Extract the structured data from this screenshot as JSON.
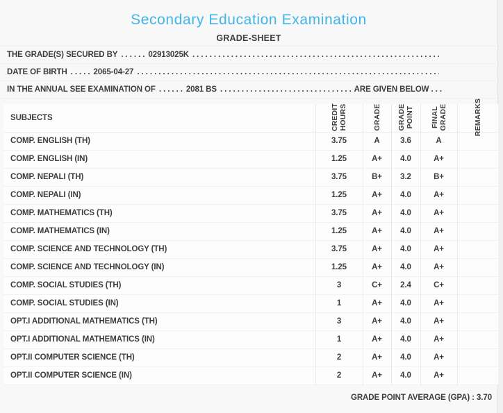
{
  "accent_color": "#41b4e9",
  "page": {
    "title": "Secondary Education Examination",
    "subtitle": "GRADE-SHEET"
  },
  "info": {
    "lines": [
      {
        "label": "THE GRADE(S) SECURED BY",
        "lead_dots": ". . . . . .",
        "value": "02913025K",
        "fill_dots": ". . . . . . . . . . . . . . . . . . . . . . . . . . . . . . . . . . . . . . . . . . . . . . . . . . . . . . . . . . . . . . . . . . . . . . . .",
        "suffix": ""
      },
      {
        "label": "DATE OF BIRTH",
        "lead_dots": ". . . . .",
        "value": "2065-04-27",
        "fill_dots": ". . . . . . . . . . . . . . . . . . . . . . . . . . . . . . . . . . . . . . . . . . . . . . . . . . . . . . . . . . . . . . . . . . . . . . . .",
        "suffix": ""
      },
      {
        "label": "IN THE ANNUAL SEE EXAMINATION OF",
        "lead_dots": ". . . . . .",
        "value": "2081 BS",
        "fill_dots": ". . . . . . . . . . . . . . . . . . . . . . . . . . . . . . . . . . . . . . . . . . . . . . . . . . . . . . . . . . . . . . . . . . . . . . . .",
        "suffix": "ARE GIVEN BELOW . . ."
      }
    ]
  },
  "table": {
    "subjects_header": "SUBJECTS",
    "column_headers": {
      "credit_hours": "CREDIT\nHOURS",
      "grade": "GRADE",
      "grade_point": "GRADE\nPOINT",
      "final_grade": "FINAL\nGRADE",
      "remarks": "REMARKS"
    },
    "rows": [
      {
        "subject": "COMP. ENGLISH (TH)",
        "credit_hours": "3.75",
        "grade": "A",
        "grade_point": "3.6",
        "final_grade": "A",
        "remarks": ""
      },
      {
        "subject": "COMP. ENGLISH (IN)",
        "credit_hours": "1.25",
        "grade": "A+",
        "grade_point": "4.0",
        "final_grade": "A+",
        "remarks": ""
      },
      {
        "subject": "COMP. NEPALI (TH)",
        "credit_hours": "3.75",
        "grade": "B+",
        "grade_point": "3.2",
        "final_grade": "B+",
        "remarks": ""
      },
      {
        "subject": "COMP. NEPALI (IN)",
        "credit_hours": "1.25",
        "grade": "A+",
        "grade_point": "4.0",
        "final_grade": "A+",
        "remarks": ""
      },
      {
        "subject": "COMP. MATHEMATICS (TH)",
        "credit_hours": "3.75",
        "grade": "A+",
        "grade_point": "4.0",
        "final_grade": "A+",
        "remarks": ""
      },
      {
        "subject": "COMP. MATHEMATICS (IN)",
        "credit_hours": "1.25",
        "grade": "A+",
        "grade_point": "4.0",
        "final_grade": "A+",
        "remarks": ""
      },
      {
        "subject": "COMP. SCIENCE AND TECHNOLOGY (TH)",
        "credit_hours": "3.75",
        "grade": "A+",
        "grade_point": "4.0",
        "final_grade": "A+",
        "remarks": ""
      },
      {
        "subject": "COMP. SCIENCE AND TECHNOLOGY (IN)",
        "credit_hours": "1.25",
        "grade": "A+",
        "grade_point": "4.0",
        "final_grade": "A+",
        "remarks": ""
      },
      {
        "subject": "COMP. SOCIAL STUDIES (TH)",
        "credit_hours": "3",
        "grade": "C+",
        "grade_point": "2.4",
        "final_grade": "C+",
        "remarks": ""
      },
      {
        "subject": "COMP. SOCIAL STUDIES (IN)",
        "credit_hours": "1",
        "grade": "A+",
        "grade_point": "4.0",
        "final_grade": "A+",
        "remarks": ""
      },
      {
        "subject": "OPT.I ADDITIONAL MATHEMATICS (TH)",
        "credit_hours": "3",
        "grade": "A+",
        "grade_point": "4.0",
        "final_grade": "A+",
        "remarks": ""
      },
      {
        "subject": "OPT.I ADDITIONAL MATHEMATICS (IN)",
        "credit_hours": "1",
        "grade": "A+",
        "grade_point": "4.0",
        "final_grade": "A+",
        "remarks": ""
      },
      {
        "subject": "OPT.II COMPUTER SCIENCE (TH)",
        "credit_hours": "2",
        "grade": "A+",
        "grade_point": "4.0",
        "final_grade": "A+",
        "remarks": ""
      },
      {
        "subject": "OPT.II COMPUTER SCIENCE (IN)",
        "credit_hours": "2",
        "grade": "A+",
        "grade_point": "4.0",
        "final_grade": "A+",
        "remarks": ""
      }
    ]
  },
  "footer": {
    "gpa_label": "GRADE POINT AVERAGE (GPA) :",
    "gpa_value": "3.70"
  }
}
